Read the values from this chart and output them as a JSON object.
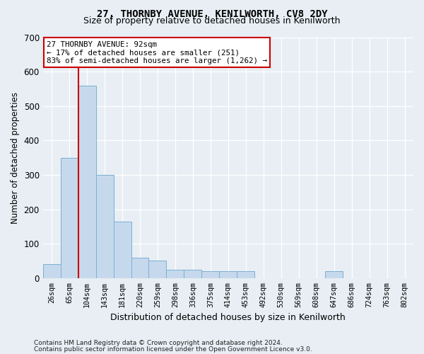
{
  "title1": "27, THORNBY AVENUE, KENILWORTH, CV8 2DY",
  "title2": "Size of property relative to detached houses in Kenilworth",
  "xlabel": "Distribution of detached houses by size in Kenilworth",
  "ylabel": "Number of detached properties",
  "bin_labels": [
    "26sqm",
    "65sqm",
    "104sqm",
    "143sqm",
    "181sqm",
    "220sqm",
    "259sqm",
    "298sqm",
    "336sqm",
    "375sqm",
    "414sqm",
    "453sqm",
    "492sqm",
    "530sqm",
    "569sqm",
    "608sqm",
    "647sqm",
    "686sqm",
    "724sqm",
    "763sqm",
    "802sqm"
  ],
  "bar_values": [
    40,
    350,
    560,
    300,
    165,
    60,
    50,
    25,
    25,
    20,
    20,
    20,
    0,
    0,
    0,
    0,
    20,
    0,
    0,
    0,
    0
  ],
  "bar_color": "#c6d9ec",
  "bar_edge_color": "#7aafd4",
  "vline_color": "#cc0000",
  "annotation_text": "27 THORNBY AVENUE: 92sqm\n← 17% of detached houses are smaller (251)\n83% of semi-detached houses are larger (1,262) →",
  "annotation_box_color": "#ffffff",
  "annotation_box_edge": "#cc0000",
  "ylim": [
    0,
    700
  ],
  "yticks": [
    0,
    100,
    200,
    300,
    400,
    500,
    600,
    700
  ],
  "footer1": "Contains HM Land Registry data © Crown copyright and database right 2024.",
  "footer2": "Contains public sector information licensed under the Open Government Licence v3.0.",
  "bg_color": "#e8eef4",
  "grid_color": "#ffffff",
  "property_sqm": 92,
  "bin_width": 39
}
